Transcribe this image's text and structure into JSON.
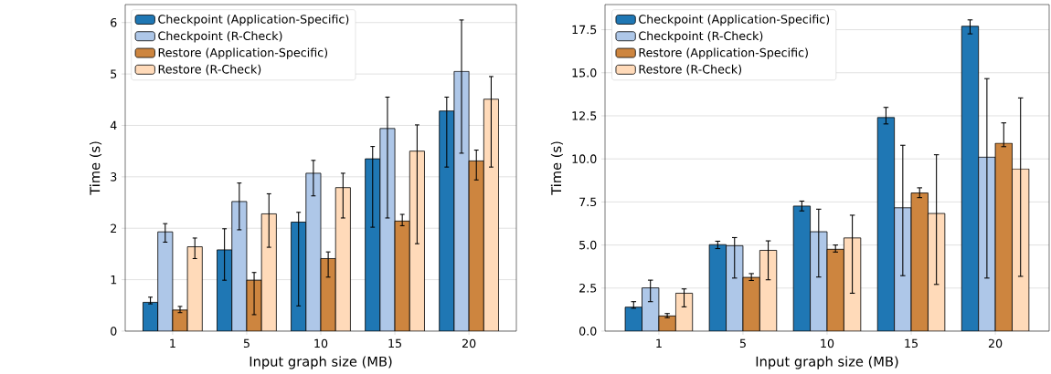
{
  "chart_data": [
    {
      "type": "bar",
      "xlabel": "Input graph size (MB)",
      "ylabel": "Time (s)",
      "categories": [
        "1",
        "5",
        "10",
        "15",
        "20"
      ],
      "ylim": [
        0,
        6.35
      ],
      "yticks": [
        0,
        1,
        2,
        3,
        4,
        5,
        6
      ],
      "grid": "y",
      "legend": "top left",
      "series": [
        {
          "name": "Checkpoint (Application-Specific)",
          "color": "#1f77b4",
          "values": [
            0.56,
            1.58,
            2.12,
            3.35,
            4.28
          ],
          "errors": [
            [
              0.53,
              0.66
            ],
            [
              0.99,
              1.99
            ],
            [
              0.49,
              2.31
            ],
            [
              2.02,
              3.59
            ],
            [
              3.19,
              4.55
            ]
          ]
        },
        {
          "name": "Checkpoint (R-Check)",
          "color": "#aec7e8",
          "values": [
            1.93,
            2.52,
            3.07,
            3.94,
            5.05
          ],
          "errors": [
            [
              1.73,
              2.09
            ],
            [
              1.97,
              2.88
            ],
            [
              2.63,
              3.32
            ],
            [
              2.2,
              4.55
            ],
            [
              3.46,
              6.05
            ]
          ]
        },
        {
          "name": "Restore (Application-Specific)",
          "color": "#cd853f",
          "values": [
            0.41,
            0.99,
            1.41,
            2.14,
            3.31
          ],
          "errors": [
            [
              0.36,
              0.48
            ],
            [
              0.32,
              1.14
            ],
            [
              1.05,
              1.54
            ],
            [
              2.05,
              2.27
            ],
            [
              2.94,
              3.52
            ]
          ]
        },
        {
          "name": "Restore (R-Check)",
          "color": "#ffdab9",
          "values": [
            1.64,
            2.28,
            2.79,
            3.5,
            4.51
          ],
          "errors": [
            [
              1.41,
              1.81
            ],
            [
              1.63,
              2.67
            ],
            [
              2.2,
              3.07
            ],
            [
              1.7,
              4.01
            ],
            [
              3.19,
              4.95
            ]
          ]
        }
      ]
    },
    {
      "type": "bar",
      "xlabel": "Input graph size (MB)",
      "ylabel": "Time (s)",
      "categories": [
        "1",
        "5",
        "10",
        "15",
        "20"
      ],
      "ylim": [
        0,
        18.96
      ],
      "yticks": [
        {
          "value": 0,
          "label": "0.0"
        },
        {
          "value": 2.5,
          "label": "2.5"
        },
        {
          "value": 5,
          "label": "5.0"
        },
        {
          "value": 7.5,
          "label": "7.5"
        },
        {
          "value": 10,
          "label": "10.0"
        },
        {
          "value": 12.5,
          "label": "12.5"
        },
        {
          "value": 15,
          "label": "15.0"
        },
        {
          "value": 17.5,
          "label": "17.5"
        }
      ],
      "grid": "y",
      "legend": "top left",
      "series": [
        {
          "name": "Checkpoint (Application-Specific)",
          "color": "#1f77b4",
          "values": [
            1.39,
            5.02,
            7.26,
            12.4,
            17.7
          ],
          "errors": [
            [
              1.33,
              1.71
            ],
            [
              4.79,
              5.22
            ],
            [
              6.98,
              7.55
            ],
            [
              12.03,
              12.99
            ],
            [
              17.26,
              18.07
            ]
          ]
        },
        {
          "name": "Checkpoint (R-Check)",
          "color": "#aec7e8",
          "values": [
            2.51,
            4.96,
            5.77,
            7.16,
            10.1
          ],
          "errors": [
            [
              1.71,
              2.96
            ],
            [
              3.08,
              5.43
            ],
            [
              3.14,
              7.08
            ],
            [
              3.22,
              10.79
            ],
            [
              3.08,
              14.66
            ]
          ]
        },
        {
          "name": "Restore (Application-Specific)",
          "color": "#cd853f",
          "values": [
            0.88,
            3.12,
            4.75,
            8.02,
            10.91
          ],
          "errors": [
            [
              0.78,
              1.02
            ],
            [
              2.94,
              3.34
            ],
            [
              4.59,
              5.0
            ],
            [
              7.75,
              8.32
            ],
            [
              10.71,
              12.09
            ]
          ]
        },
        {
          "name": "Restore (R-Check)",
          "color": "#ffdab9",
          "values": [
            2.2,
            4.69,
            5.41,
            6.83,
            9.42
          ],
          "errors": [
            [
              1.41,
              2.45
            ],
            [
              2.98,
              5.24
            ],
            [
              2.2,
              6.73
            ],
            [
              2.71,
              10.24
            ],
            [
              3.18,
              13.54
            ]
          ]
        }
      ]
    }
  ]
}
